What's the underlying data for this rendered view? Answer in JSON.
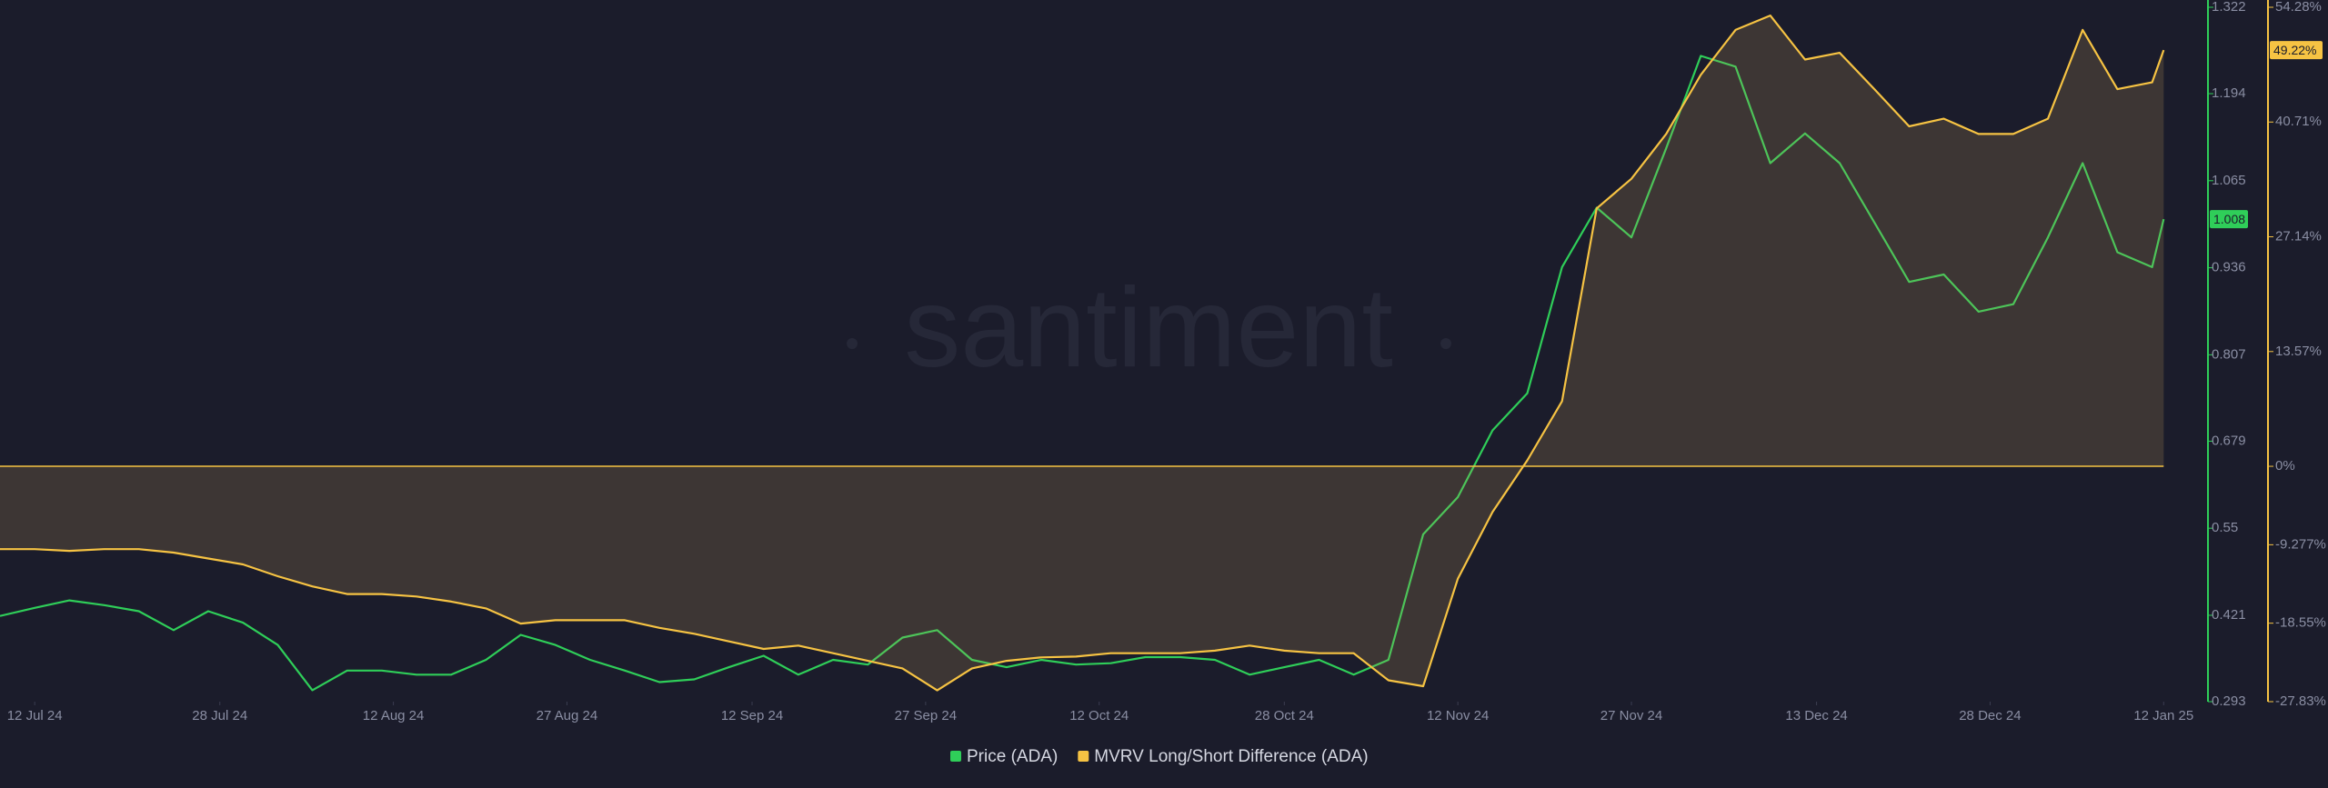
{
  "chart_data": {
    "type": "line",
    "watermark": "santiment",
    "x": [
      "2024-07-09",
      "2024-07-12",
      "2024-07-15",
      "2024-07-18",
      "2024-07-21",
      "2024-07-24",
      "2024-07-27",
      "2024-07-30",
      "2024-08-02",
      "2024-08-05",
      "2024-08-08",
      "2024-08-11",
      "2024-08-14",
      "2024-08-17",
      "2024-08-20",
      "2024-08-23",
      "2024-08-26",
      "2024-08-29",
      "2024-09-01",
      "2024-09-04",
      "2024-09-07",
      "2024-09-10",
      "2024-09-13",
      "2024-09-16",
      "2024-09-19",
      "2024-09-22",
      "2024-09-25",
      "2024-09-28",
      "2024-10-01",
      "2024-10-04",
      "2024-10-07",
      "2024-10-10",
      "2024-10-13",
      "2024-10-16",
      "2024-10-19",
      "2024-10-22",
      "2024-10-25",
      "2024-10-28",
      "2024-10-31",
      "2024-11-03",
      "2024-11-06",
      "2024-11-09",
      "2024-11-12",
      "2024-11-15",
      "2024-11-18",
      "2024-11-21",
      "2024-11-24",
      "2024-11-27",
      "2024-11-30",
      "2024-12-03",
      "2024-12-06",
      "2024-12-09",
      "2024-12-12",
      "2024-12-15",
      "2024-12-18",
      "2024-12-21",
      "2024-12-24",
      "2024-12-27",
      "2024-12-30",
      "2025-01-02",
      "2025-01-05",
      "2025-01-08",
      "2025-01-11",
      "2025-01-12"
    ],
    "series": [
      {
        "name": "Price (ADA)",
        "color": "#2fce59",
        "last_label": "1.008",
        "values": [
          0.42,
          0.432,
          0.443,
          0.436,
          0.427,
          0.399,
          0.427,
          0.41,
          0.377,
          0.31,
          0.339,
          0.339,
          0.333,
          0.333,
          0.355,
          0.392,
          0.377,
          0.355,
          0.339,
          0.322,
          0.326,
          0.344,
          0.361,
          0.333,
          0.355,
          0.348,
          0.388,
          0.399,
          0.355,
          0.344,
          0.355,
          0.348,
          0.35,
          0.359,
          0.359,
          0.355,
          0.333,
          0.344,
          0.355,
          0.333,
          0.355,
          0.541,
          0.596,
          0.695,
          0.75,
          0.937,
          1.025,
          0.981,
          1.113,
          1.25,
          1.234,
          1.091,
          1.135,
          1.091,
          1.003,
          0.915,
          0.926,
          0.871,
          0.882,
          0.981,
          1.091,
          0.959,
          0.937,
          1.008
        ]
      },
      {
        "name": "MVRV Long/Short Difference (ADA)",
        "color": "#f6c343",
        "axis": "y2",
        "last_label": "49.22%",
        "values": [
          -9.8,
          -9.8,
          -10.0,
          -9.8,
          -9.8,
          -10.2,
          -10.9,
          -11.6,
          -13.0,
          -14.2,
          -15.1,
          -15.1,
          -15.4,
          -16.0,
          -16.8,
          -18.6,
          -18.2,
          -18.2,
          -18.2,
          -19.1,
          -19.8,
          -20.7,
          -21.6,
          -21.2,
          -22.1,
          -23.0,
          -23.9,
          -26.5,
          -23.9,
          -23.0,
          -22.6,
          -22.5,
          -22.1,
          -22.1,
          -22.1,
          -21.8,
          -21.2,
          -21.8,
          -22.1,
          -22.1,
          -25.3,
          -26.0,
          -13.3,
          -5.4,
          0.7,
          7.7,
          30.5,
          34.0,
          39.3,
          46.3,
          51.6,
          53.3,
          48.1,
          48.9,
          44.6,
          40.2,
          41.1,
          39.3,
          39.3,
          41.1,
          51.6,
          44.6,
          45.4,
          49.22
        ]
      }
    ],
    "xlim": [
      "2024-07-09",
      "2025-01-13"
    ],
    "xticks": [
      {
        "value": "2024-07-12",
        "label": "12 Jul 24"
      },
      {
        "value": "2024-07-28",
        "label": "28 Jul 24"
      },
      {
        "value": "2024-08-12",
        "label": "12 Aug 24"
      },
      {
        "value": "2024-08-27",
        "label": "27 Aug 24"
      },
      {
        "value": "2024-09-12",
        "label": "12 Sep 24"
      },
      {
        "value": "2024-09-27",
        "label": "27 Sep 24"
      },
      {
        "value": "2024-10-12",
        "label": "12 Oct 24"
      },
      {
        "value": "2024-10-28",
        "label": "28 Oct 24"
      },
      {
        "value": "2024-11-12",
        "label": "12 Nov 24"
      },
      {
        "value": "2024-11-27",
        "label": "27 Nov 24"
      },
      {
        "value": "2024-12-13",
        "label": "13 Dec 24"
      },
      {
        "value": "2024-12-28",
        "label": "28 Dec 24"
      },
      {
        "value": "2025-01-12",
        "label": "12 Jan 25"
      }
    ],
    "ylim": [
      0.293,
      1.322
    ],
    "yticks": [
      0.293,
      0.421,
      0.55,
      0.679,
      0.807,
      0.936,
      1.065,
      1.194,
      1.322
    ],
    "y2lim": [
      -27.83,
      54.28
    ],
    "y2ticks": [
      {
        "value": -27.83,
        "label": "-27.83%"
      },
      {
        "value": -18.55,
        "label": "-18.55%"
      },
      {
        "value": -9.277,
        "label": "-9.277%"
      },
      {
        "value": 0,
        "label": "0%"
      },
      {
        "value": 13.57,
        "label": "13.57%"
      },
      {
        "value": 27.14,
        "label": "27.14%"
      },
      {
        "value": 40.71,
        "label": "40.71%"
      },
      {
        "value": 54.28,
        "label": "54.28%"
      }
    ]
  }
}
